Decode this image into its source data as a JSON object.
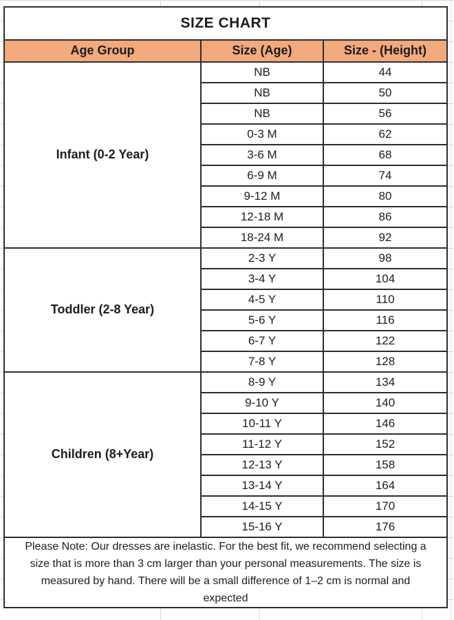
{
  "chart_data": {
    "type": "table",
    "title": "SIZE CHART",
    "columns": [
      "Age Group",
      "Size (Age)",
      "Size - (Height)"
    ],
    "groups": [
      {
        "label": "Infant (0-2 Year)",
        "rows": [
          {
            "size_age": "NB",
            "size_height": "44"
          },
          {
            "size_age": "NB",
            "size_height": "50"
          },
          {
            "size_age": "NB",
            "size_height": "56"
          },
          {
            "size_age": "0-3 M",
            "size_height": "62"
          },
          {
            "size_age": "3-6 M",
            "size_height": "68"
          },
          {
            "size_age": "6-9 M",
            "size_height": "74"
          },
          {
            "size_age": "9-12 M",
            "size_height": "80"
          },
          {
            "size_age": "12-18 M",
            "size_height": "86"
          },
          {
            "size_age": "18-24 M",
            "size_height": "92"
          }
        ]
      },
      {
        "label": "Toddler (2-8 Year)",
        "rows": [
          {
            "size_age": "2-3 Y",
            "size_height": "98"
          },
          {
            "size_age": "3-4 Y",
            "size_height": "104"
          },
          {
            "size_age": "4-5 Y",
            "size_height": "110"
          },
          {
            "size_age": "5-6 Y",
            "size_height": "116"
          },
          {
            "size_age": "6-7 Y",
            "size_height": "122"
          },
          {
            "size_age": "7-8 Y",
            "size_height": "128"
          }
        ]
      },
      {
        "label": "Children (8+Year)",
        "rows": [
          {
            "size_age": "8-9 Y",
            "size_height": "134"
          },
          {
            "size_age": "9-10 Y",
            "size_height": "140"
          },
          {
            "size_age": "10-11 Y",
            "size_height": "146"
          },
          {
            "size_age": "11-12 Y",
            "size_height": "152"
          },
          {
            "size_age": "12-13 Y",
            "size_height": "158"
          },
          {
            "size_age": "13-14 Y",
            "size_height": "164"
          },
          {
            "size_age": "14-15 Y",
            "size_height": "170"
          },
          {
            "size_age": "15-16 Y",
            "size_height": "176"
          }
        ]
      }
    ],
    "note": "Please Note: Our dresses are inelastic. For the best fit, we recommend selecting a size that is more than 3 cm larger than your personal measurements. The size is measured by hand. There will be a small difference of 1–2 cm is normal and expected"
  },
  "colors": {
    "header_bg": "#F2A97C",
    "table_border": "#2D2D2D",
    "text": "#1C1C1C",
    "sheet_gridline": "#D9D9D9"
  }
}
